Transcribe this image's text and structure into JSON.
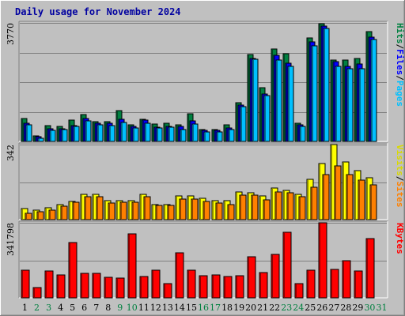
{
  "chart_data": {
    "type": "bar",
    "title": "Daily usage for November 2024",
    "x": [
      "1",
      "2",
      "3",
      "4",
      "5",
      "6",
      "7",
      "8",
      "9",
      "10",
      "11",
      "12",
      "13",
      "14",
      "15",
      "16",
      "17",
      "18",
      "19",
      "20",
      "21",
      "22",
      "23",
      "24",
      "25",
      "26",
      "27",
      "28",
      "29",
      "30",
      "31"
    ],
    "weekend_days": [
      2,
      3,
      9,
      10,
      16,
      17,
      23,
      24,
      30,
      31
    ],
    "panels": [
      {
        "max_label": "3770",
        "ylim": [
          0,
          3770
        ],
        "legend": [
          "Pages",
          "/",
          "Files",
          "/",
          "Hits"
        ],
        "series": [
          {
            "name": "Hits",
            "color": "#008040",
            "values": [
              720,
              170,
              510,
              480,
              690,
              850,
              630,
              630,
              980,
              520,
              700,
              550,
              580,
              540,
              880,
              380,
              380,
              520,
              1240,
              2770,
              1700,
              2950,
              2800,
              590,
              3290,
              3740,
              2590,
              2580,
              2630,
              3500,
              0
            ]
          },
          {
            "name": "Files",
            "color": "#0000ff",
            "values": [
              580,
              160,
              410,
              410,
              510,
              730,
              590,
              570,
              700,
              490,
              680,
              450,
              480,
              470,
              650,
              340,
              340,
              430,
              1150,
              2650,
              1520,
              2750,
              2480,
              540,
              3170,
              3670,
              2550,
              2380,
              2460,
              3330,
              0
            ]
          },
          {
            "name": "Pages",
            "color": "#00c0ff",
            "values": [
              530,
              110,
              360,
              370,
              470,
              660,
              520,
              500,
              610,
              430,
              580,
              420,
              450,
              380,
              550,
              290,
              300,
              370,
              1100,
              2620,
              1450,
              2600,
              2400,
              480,
              3050,
              3600,
              2400,
              2300,
              2300,
              3250,
              0
            ]
          }
        ]
      },
      {
        "max_label": "342",
        "ylim": [
          0,
          342
        ],
        "legend": [
          "Sites",
          "/",
          "Visits"
        ],
        "series": [
          {
            "name": "Visits",
            "color": "#ffff00",
            "values": [
              50,
              44,
              54,
              70,
              84,
              115,
              115,
              88,
              88,
              88,
              115,
              70,
              70,
              107,
              107,
              98,
              88,
              88,
              126,
              123,
              107,
              143,
              135,
              115,
              184,
              257,
              342,
              263,
              223,
              190,
              0
            ]
          },
          {
            "name": "Sites",
            "color": "#ff8000",
            "values": [
              30,
              36,
              44,
              60,
              78,
              103,
              103,
              74,
              78,
              78,
              105,
              64,
              64,
              94,
              94,
              84,
              74,
              68,
              111,
              111,
              90,
              126,
              123,
              104,
              147,
              206,
              245,
              204,
              180,
              160,
              0
            ]
          }
        ]
      },
      {
        "max_label": "341798",
        "ylim": [
          0,
          341798
        ],
        "legend": [
          "KBytes"
        ],
        "series": [
          {
            "name": "KBytes",
            "color": "#ff0000",
            "values": [
              125000,
              45000,
              124000,
              104000,
              251000,
              111000,
              112000,
              93000,
              90000,
              290000,
              97000,
              126000,
              65000,
              204000,
              125000,
              102000,
              104000,
              97000,
              102000,
              187000,
              115000,
              198000,
              297000,
              63000,
              125000,
              341798,
              128000,
              169000,
              124000,
              269000,
              0
            ]
          }
        ]
      }
    ]
  }
}
